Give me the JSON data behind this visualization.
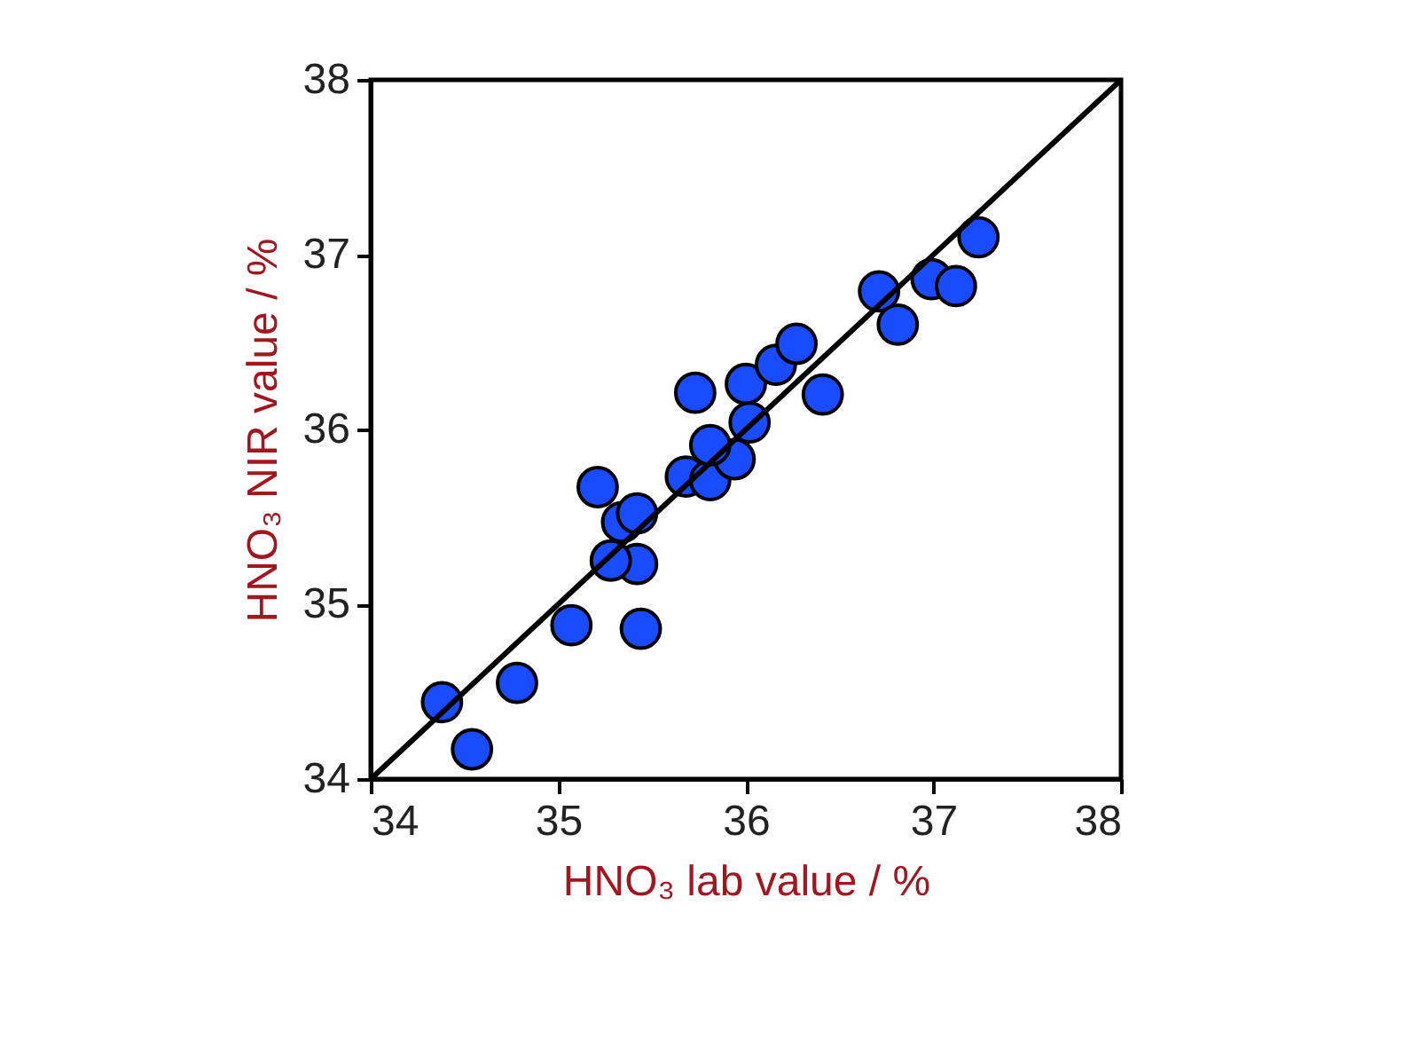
{
  "chart_data": {
    "type": "scatter",
    "xlabel": "HNO₃ lab value / %",
    "ylabel": "HNO₃  NIR value / %",
    "xlim": [
      34,
      38
    ],
    "ylim": [
      34,
      38
    ],
    "xticks": [
      34,
      35,
      36,
      37,
      38
    ],
    "yticks": [
      34,
      35,
      36,
      37,
      38
    ],
    "grid": false,
    "series": [
      {
        "marker": "circle",
        "color": "#1a4cff",
        "x": [
          34.38,
          34.54,
          34.78,
          35.07,
          35.44,
          35.42,
          35.28,
          35.34,
          35.42,
          35.21,
          35.68,
          35.81,
          35.94,
          35.81,
          35.73,
          36.0,
          36.02,
          36.16,
          36.27,
          36.41,
          36.71,
          36.81,
          36.99,
          37.12,
          37.24
        ],
        "values": [
          34.44,
          34.17,
          34.55,
          34.88,
          34.86,
          35.23,
          35.25,
          35.47,
          35.52,
          35.67,
          35.73,
          35.71,
          35.83,
          35.91,
          36.21,
          36.26,
          36.04,
          36.37,
          36.49,
          36.2,
          36.79,
          36.6,
          36.86,
          36.82,
          37.1
        ]
      },
      {
        "type": "line",
        "color": "#000000",
        "x": [
          34,
          38
        ],
        "values": [
          34,
          38
        ]
      }
    ]
  }
}
